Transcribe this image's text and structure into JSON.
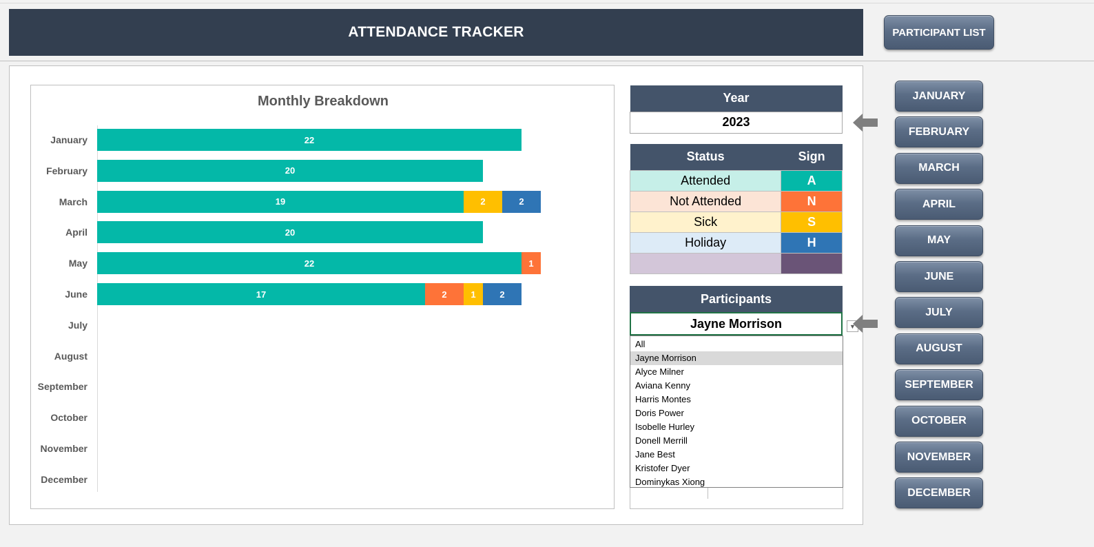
{
  "header": {
    "title": "ATTENDANCE TRACKER",
    "participant_list_label": "PARTICIPANT LIST"
  },
  "chart_data": {
    "type": "bar",
    "orientation": "horizontal",
    "stacked": true,
    "title": "Monthly Breakdown",
    "categories": [
      "January",
      "February",
      "March",
      "April",
      "May",
      "June",
      "July",
      "August",
      "September",
      "October",
      "November",
      "December"
    ],
    "series": [
      {
        "color": "#04b8a8",
        "values": [
          22,
          20,
          19,
          20,
          22,
          17,
          null,
          null,
          null,
          null,
          null,
          null
        ]
      },
      {
        "color": "#fe7338",
        "values": [
          null,
          null,
          null,
          null,
          1,
          2,
          null,
          null,
          null,
          null,
          null,
          null
        ]
      },
      {
        "color": "#ffbf00",
        "values": [
          null,
          null,
          2,
          null,
          null,
          1,
          null,
          null,
          null,
          null,
          null,
          null
        ]
      },
      {
        "color": "#2f75b5",
        "values": [
          null,
          null,
          2,
          null,
          null,
          2,
          null,
          null,
          null,
          null,
          null,
          null
        ]
      }
    ],
    "xlim": [
      0,
      25
    ],
    "grid": false,
    "legend": "none"
  },
  "year": {
    "label": "Year",
    "value": "2023"
  },
  "status": {
    "header_status": "Status",
    "header_sign": "Sign",
    "rows": [
      {
        "status": "Attended",
        "sign": "A",
        "bg": "#c6efe8",
        "sign_bg": "#04b8a8"
      },
      {
        "status": "Not Attended",
        "sign": "N",
        "bg": "#fce4d6",
        "sign_bg": "#fe7338"
      },
      {
        "status": "Sick",
        "sign": "S",
        "bg": "#fff2cc",
        "sign_bg": "#ffbf00"
      },
      {
        "status": "Holiday",
        "sign": "H",
        "bg": "#ddebf7",
        "sign_bg": "#2f75b5"
      },
      {
        "status": "",
        "sign": "",
        "bg": "#d3c6d9",
        "sign_bg": "#6a5477"
      }
    ]
  },
  "participants": {
    "label": "Participants",
    "selected": "Jayne Morrison",
    "options": [
      "All",
      "Jayne Morrison",
      "Alyce Milner",
      "Aviana Kenny",
      "Harris Montes",
      "Doris Power",
      "Isobelle Hurley",
      "Donell Merrill",
      "Jane Best",
      "Kristofer Dyer",
      "Dominykas Xiong"
    ]
  },
  "months_nav": [
    "JANUARY",
    "FEBRUARY",
    "MARCH",
    "APRIL",
    "MAY",
    "JUNE",
    "JULY",
    "AUGUST",
    "SEPTEMBER",
    "OCTOBER",
    "NOVEMBER",
    "DECEMBER"
  ],
  "colors": {
    "dark_header": "#333f50",
    "table_header": "#44546a"
  }
}
